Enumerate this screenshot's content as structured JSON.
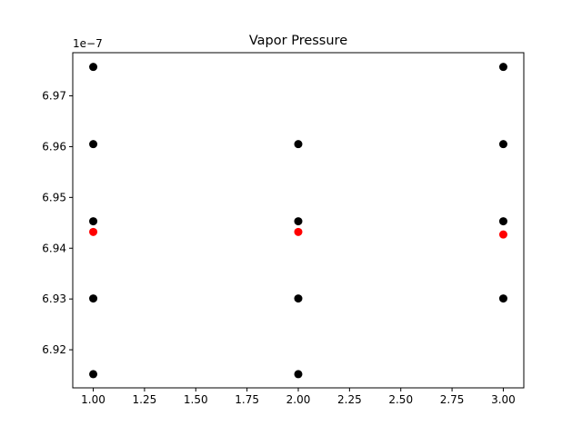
{
  "chart_data": {
    "type": "scatter",
    "title": "Vapor Pressure",
    "xlabel": "",
    "ylabel": "",
    "y_offset_label": "1e−7",
    "xlim": [
      0.9,
      3.1
    ],
    "ylim": [
      6.9125,
      6.9785
    ],
    "x_ticks": [
      1.0,
      1.25,
      1.5,
      1.75,
      2.0,
      2.25,
      2.5,
      2.75,
      3.0
    ],
    "x_tick_labels": [
      "1.00",
      "1.25",
      "1.50",
      "1.75",
      "2.00",
      "2.25",
      "2.50",
      "2.75",
      "3.00"
    ],
    "y_ticks": [
      6.92,
      6.93,
      6.94,
      6.95,
      6.96,
      6.97
    ],
    "y_tick_labels": [
      "6.92",
      "6.93",
      "6.94",
      "6.95",
      "6.96",
      "6.97"
    ],
    "grid": false,
    "series": [
      {
        "color": "#000000",
        "points": [
          {
            "x": 1,
            "y": 6.9757
          },
          {
            "x": 1,
            "y": 6.9605
          },
          {
            "x": 1,
            "y": 6.9453
          },
          {
            "x": 1,
            "y": 6.9301
          },
          {
            "x": 1,
            "y": 6.9152
          },
          {
            "x": 2,
            "y": 6.9605
          },
          {
            "x": 2,
            "y": 6.9453
          },
          {
            "x": 2,
            "y": 6.9301
          },
          {
            "x": 2,
            "y": 6.9152
          },
          {
            "x": 3,
            "y": 6.9757
          },
          {
            "x": 3,
            "y": 6.9605
          },
          {
            "x": 3,
            "y": 6.9453
          },
          {
            "x": 3,
            "y": 6.9301
          }
        ]
      },
      {
        "color": "#ff0000",
        "points": [
          {
            "x": 1,
            "y": 6.9432
          },
          {
            "x": 2,
            "y": 6.9432
          },
          {
            "x": 3,
            "y": 6.9427
          }
        ]
      }
    ]
  }
}
